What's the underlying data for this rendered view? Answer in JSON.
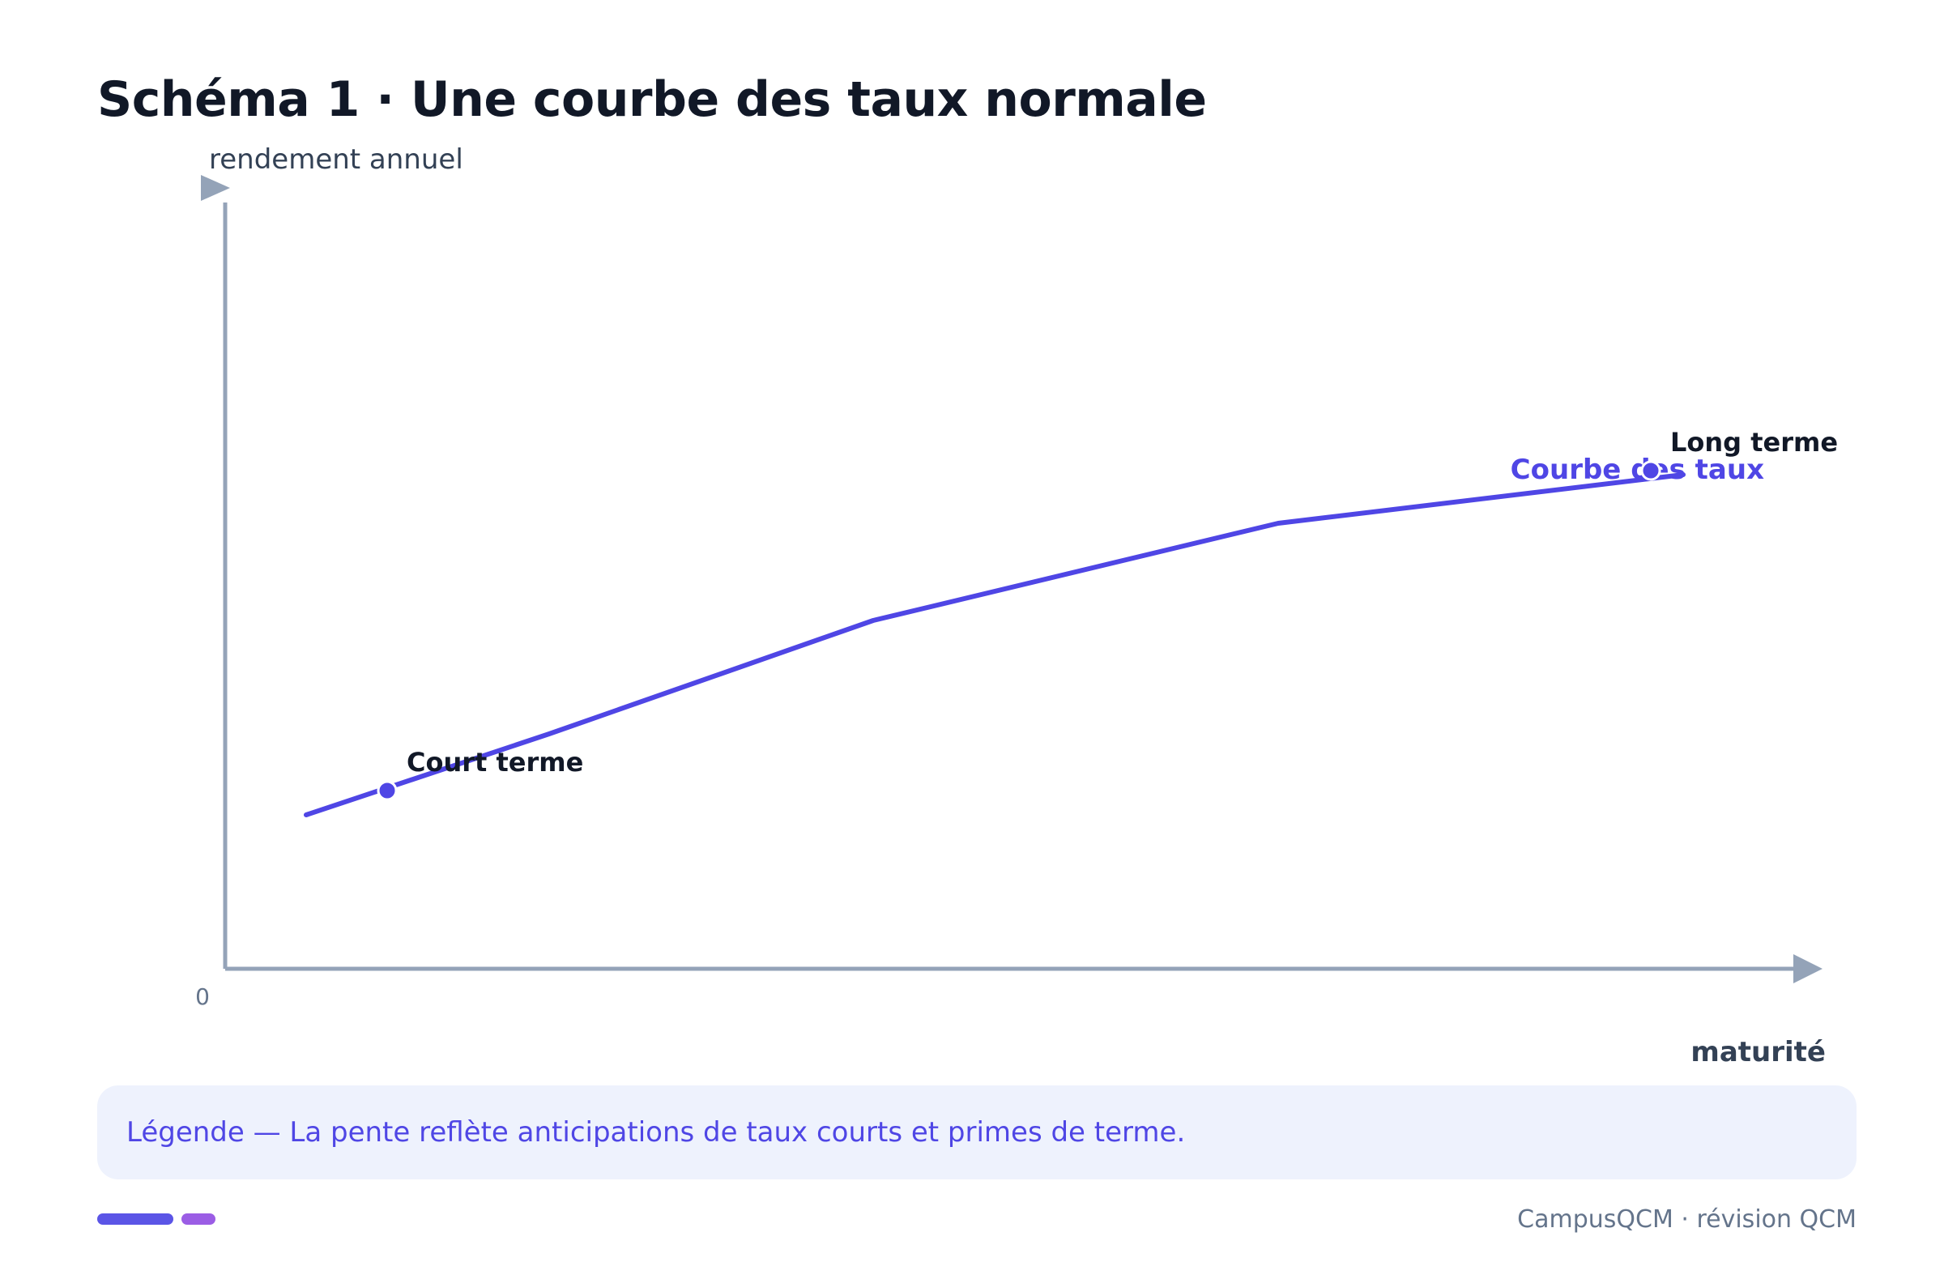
{
  "title": "Schéma 1 · Une courbe des taux normale",
  "legend_text": "Légende — La pente reflète anticipations de taux courts et primes de terme.",
  "footer": {
    "brand_text": "CampusQCM · révision QCM"
  },
  "colors": {
    "curve": "#4f46e5",
    "axis": "#94a3b8",
    "brand_primary": "#5b55e6",
    "brand_secondary": "#9b5de5"
  },
  "chart_data": {
    "type": "line",
    "ylabel": "rendement annuel",
    "xlabel": "maturité",
    "origin_label": "0",
    "ticks_visible": false,
    "grid": false,
    "series": [
      {
        "name": "Courbe des taux",
        "x": [
          0.5,
          2,
          4,
          6.5,
          9
        ],
        "y": [
          1.9,
          2.9,
          4.3,
          5.5,
          6.1
        ]
      }
    ],
    "annotations": [
      {
        "label": "Court terme",
        "x": 1,
        "y": 2.2
      },
      {
        "label": "Long terme",
        "x": 8.8,
        "y": 6.15
      }
    ],
    "xlim": [
      0,
      10
    ],
    "ylim": [
      0,
      9.6
    ]
  }
}
